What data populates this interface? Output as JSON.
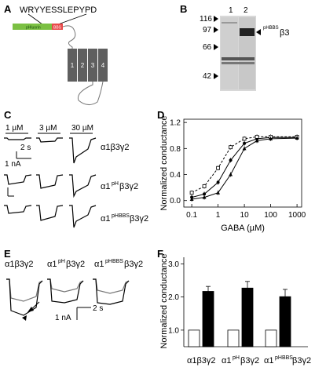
{
  "panels": {
    "A": {
      "letter": "A",
      "sequence": "WRYYESSLEPYPD",
      "phluorin_label": "pHluorin",
      "bbs_label": "BBS",
      "tm_labels": [
        "1",
        "2",
        "3",
        "4"
      ],
      "colors": {
        "phluorin": "#7bc043",
        "bbs": "#e84a4a",
        "tm": "#5f5f5f"
      }
    },
    "B": {
      "letter": "B",
      "lane_labels": [
        "1",
        "2"
      ],
      "mw_markers": [
        "116",
        "97",
        "66",
        "42"
      ],
      "band_label_sup": "pHBBS",
      "band_label_main": "β3"
    },
    "C": {
      "letter": "C",
      "concentrations": [
        "1 µM",
        "3 µM",
        "30 µM"
      ],
      "scale_time": "2 s",
      "scale_current": "1 nA",
      "rows": [
        {
          "main": "α1β3γ2",
          "sup": ""
        },
        {
          "main_pre": "α1",
          "sup": "pH",
          "main_post": "β3γ2"
        },
        {
          "main_pre": "α1",
          "sup": "pHBBS",
          "main_post": "β3γ2"
        }
      ]
    },
    "D": {
      "letter": "D",
      "xlabel": "GABA (µM)",
      "ylabel": "Normalized conductance",
      "xticks": [
        "0.1",
        "1",
        "10",
        "100",
        "1000"
      ],
      "yticks": [
        "0.0",
        "0.4",
        "0.8",
        "1.2"
      ]
    },
    "E": {
      "letter": "E",
      "labels": [
        {
          "main_pre": "α1β3γ2",
          "sup": "",
          "main_post": ""
        },
        {
          "main_pre": "α1",
          "sup": "pH",
          "main_post": "β3γ2"
        },
        {
          "main_pre": "α1",
          "sup": "pHBBS",
          "main_post": "β3γ2"
        }
      ],
      "scale_time": "2 s",
      "scale_current": "1 nA"
    },
    "F": {
      "letter": "F",
      "ylabel": "Normalized conductance",
      "yticks": [
        "1.0",
        "2.0",
        "3.0"
      ]
    }
  },
  "chart_data": [
    {
      "panel": "D",
      "type": "line",
      "xscale": "log",
      "xlim": [
        0.05,
        1500
      ],
      "ylim": [
        -0.1,
        1.25
      ],
      "xlabel": "GABA (µM)",
      "ylabel": "Normalized conductance",
      "x": [
        0.1,
        0.3,
        1,
        3,
        10,
        30,
        100,
        1000
      ],
      "series": [
        {
          "marker": "circle",
          "style": "solid",
          "values": [
            0.05,
            0.1,
            0.28,
            0.62,
            0.88,
            0.95,
            0.97,
            0.97
          ]
        },
        {
          "marker": "square",
          "style": "dashed",
          "values": [
            0.12,
            0.22,
            0.5,
            0.82,
            0.95,
            0.98,
            0.98,
            0.98
          ]
        },
        {
          "marker": "triangle",
          "style": "solid",
          "values": [
            0.02,
            0.05,
            0.12,
            0.4,
            0.8,
            0.92,
            0.95,
            0.96
          ]
        }
      ],
      "legend": false,
      "grid": false
    },
    {
      "panel": "F",
      "type": "bar",
      "categories": [
        {
          "main_pre": "α1β3γ2",
          "sup": "",
          "main_post": ""
        },
        {
          "main_pre": "α1",
          "sup": "pH",
          "main_post": "β3γ2"
        },
        {
          "main_pre": "α1",
          "sup": "pHBBS",
          "main_post": "β3γ2"
        }
      ],
      "ylim": [
        0.5,
        3.2
      ],
      "ylabel": "Normalized conductance",
      "series": [
        {
          "fill": "white",
          "values": [
            1.0,
            1.0,
            1.0
          ],
          "errors": [
            0,
            0,
            0
          ]
        },
        {
          "fill": "black",
          "values": [
            2.17,
            2.27,
            2.01
          ],
          "errors": [
            0.15,
            0.2,
            0.22
          ]
        }
      ]
    }
  ]
}
